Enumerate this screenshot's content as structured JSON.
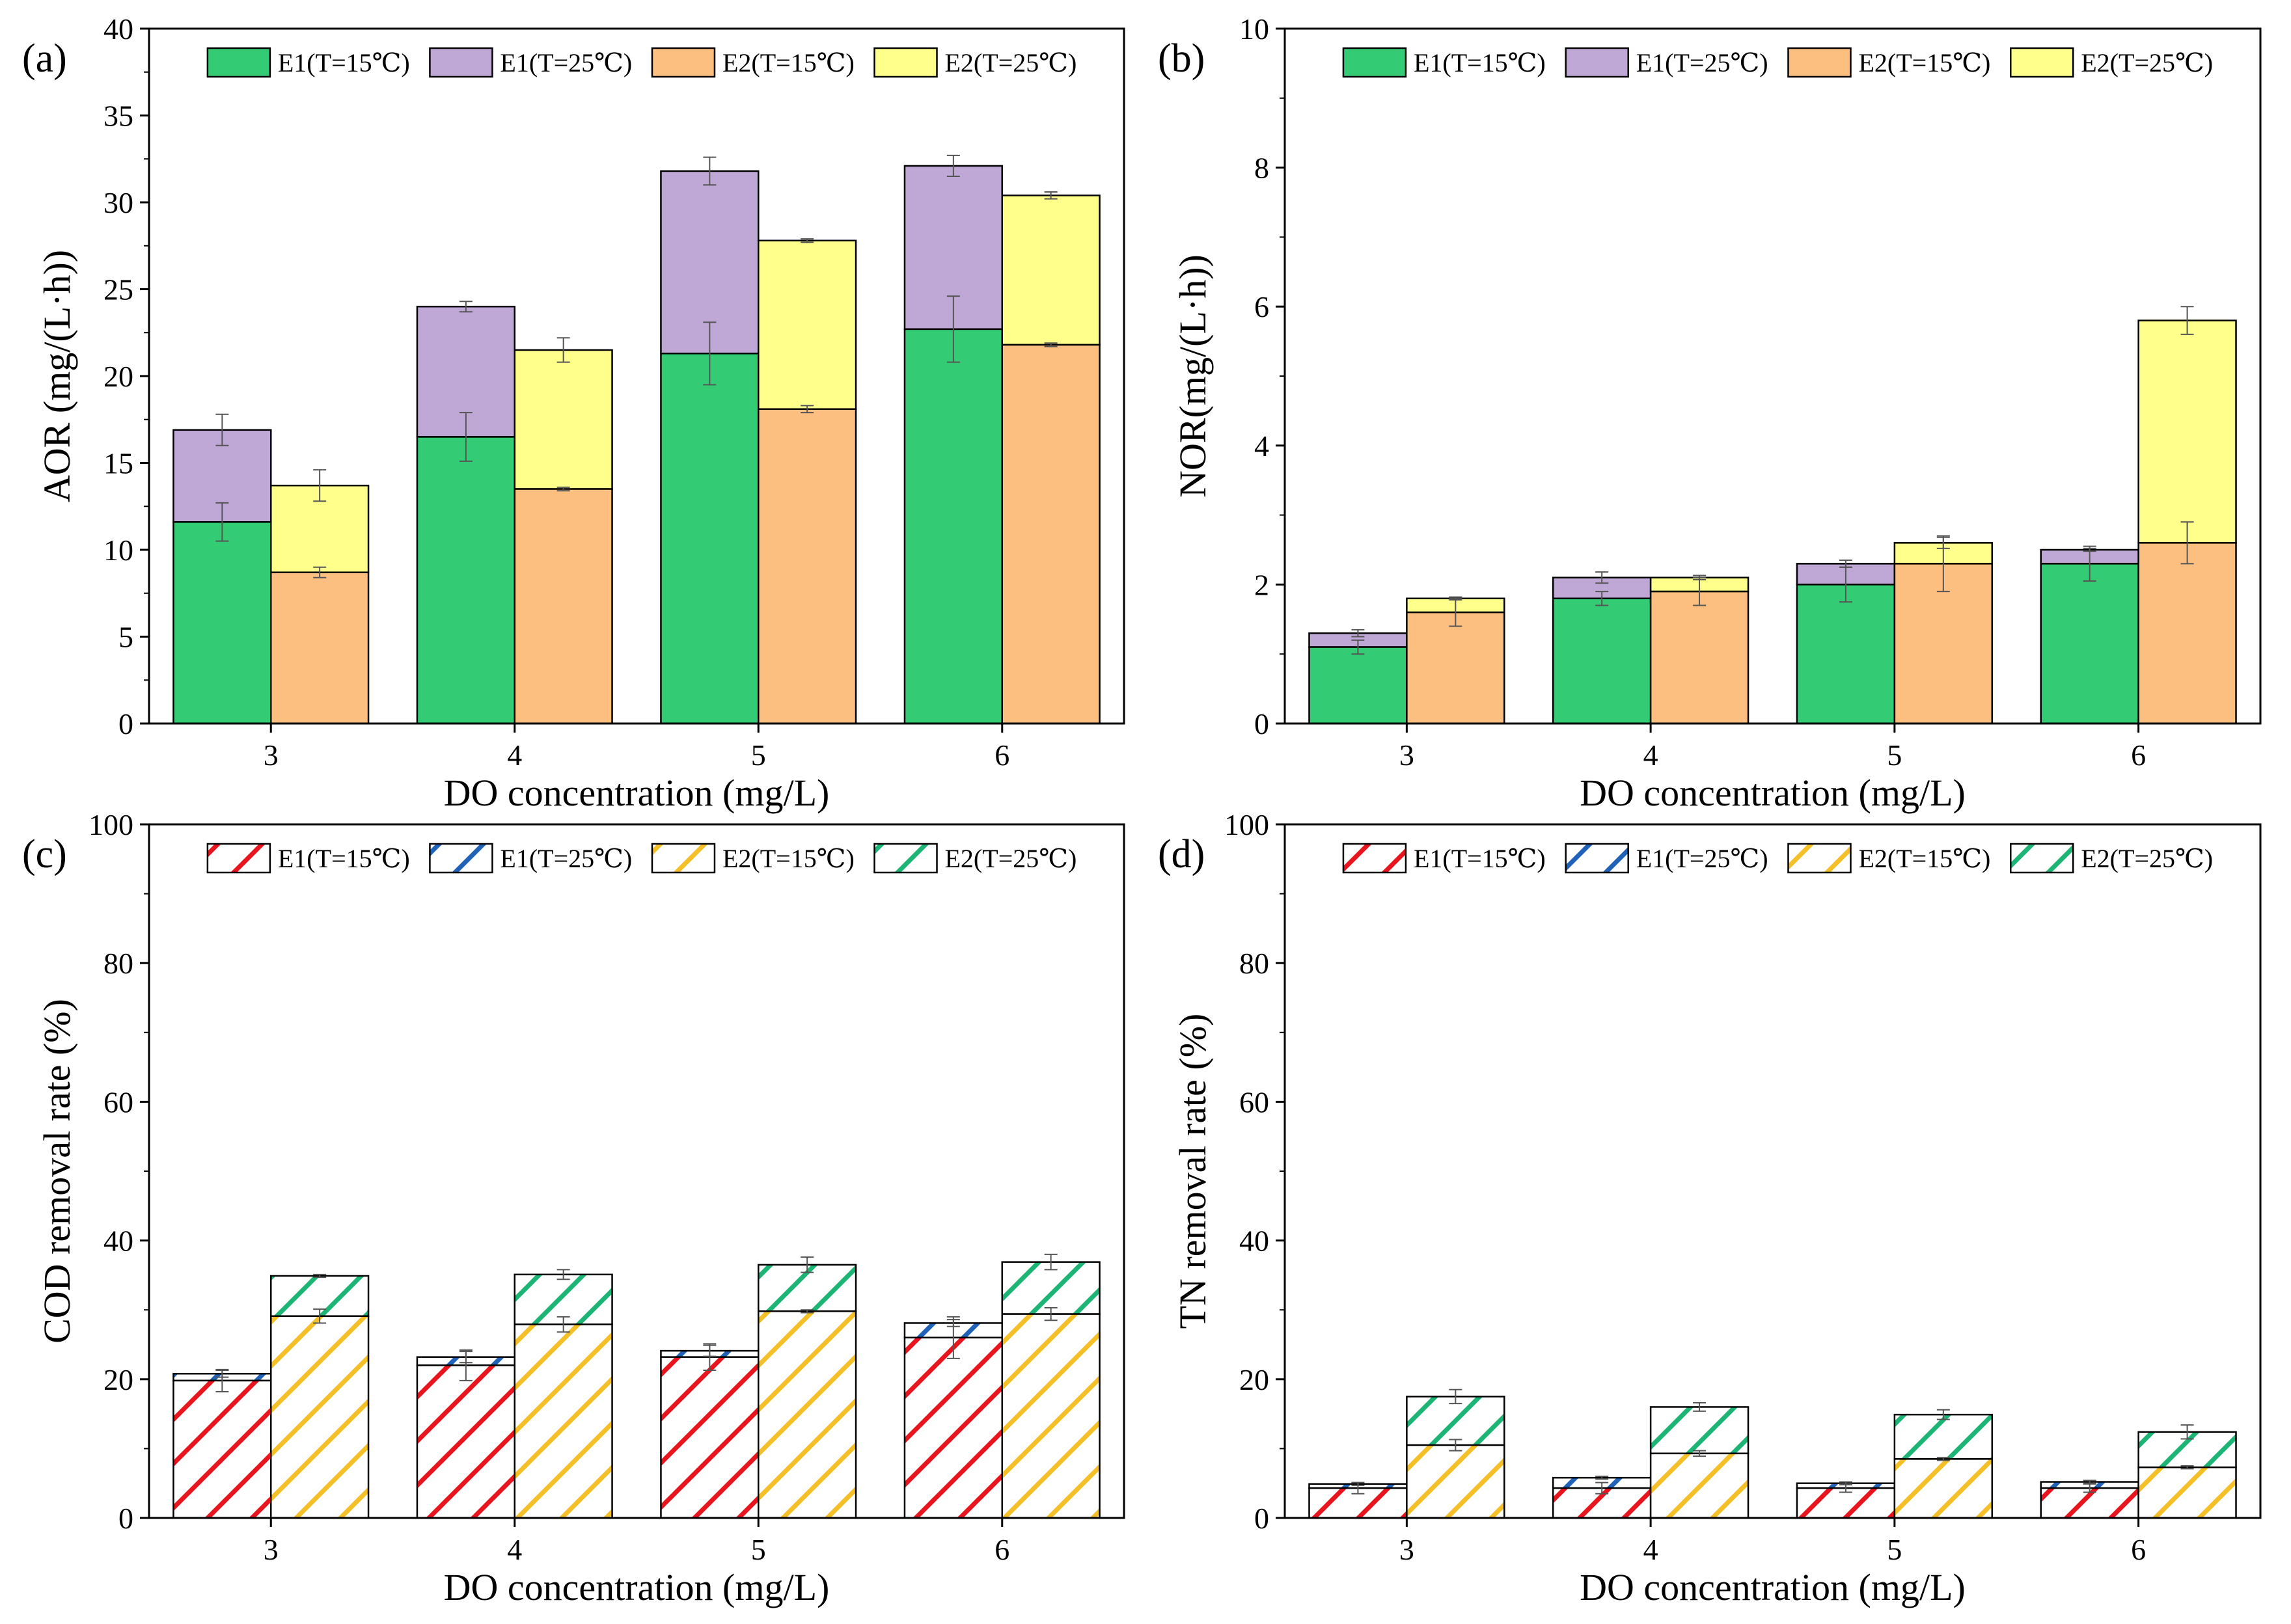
{
  "colors": {
    "e1_15": "#33cc74",
    "e1_25": "#bfa7d6",
    "e2_15": "#fdbf80",
    "e2_25": "#ffff8c",
    "hatch_e1_15": "#e8141e",
    "hatch_e1_25": "#1f62b8",
    "hatch_e2_15": "#f5c027",
    "hatch_e2_25": "#1db575"
  },
  "chart_data": [
    {
      "id": "a",
      "panel_label": "(a)",
      "type": "bar",
      "style": "solid",
      "stacked": true,
      "categories": [
        "3",
        "4",
        "5",
        "6"
      ],
      "xlabel": "DO concentration (mg/L)",
      "ylabel": "AOR (mg/(L·h))",
      "ylim": [
        0,
        40
      ],
      "yticks": [
        0,
        5,
        10,
        15,
        20,
        25,
        30,
        35,
        40
      ],
      "grid": false,
      "legend": "top",
      "legend_labels": [
        "E1(T=15℃)",
        "E1(T=25℃)",
        "E2(T=15℃)",
        "E2(T=25℃)"
      ],
      "groups": [
        {
          "name": "E1",
          "base": [
            11.6,
            16.5,
            21.3,
            22.7
          ],
          "base_err": [
            1.1,
            1.4,
            1.8,
            1.9
          ],
          "total": [
            16.9,
            24.0,
            31.8,
            32.1
          ],
          "total_err": [
            0.9,
            0.3,
            0.8,
            0.6
          ]
        },
        {
          "name": "E2",
          "base": [
            8.7,
            13.5,
            18.1,
            21.8
          ],
          "base_err": [
            0.3,
            0.1,
            0.2,
            0.1
          ],
          "total": [
            13.7,
            21.5,
            27.8,
            30.4
          ],
          "total_err": [
            0.9,
            0.7,
            0.1,
            0.2
          ]
        }
      ]
    },
    {
      "id": "b",
      "panel_label": "(b)",
      "type": "bar",
      "style": "solid",
      "stacked": true,
      "categories": [
        "3",
        "4",
        "5",
        "6"
      ],
      "xlabel": "DO concentration (mg/L)",
      "ylabel": "NOR(mg/(L·h))",
      "ylim": [
        0,
        10
      ],
      "yticks": [
        0,
        2,
        4,
        6,
        8,
        10
      ],
      "grid": false,
      "legend": "top",
      "legend_labels": [
        "E1(T=15℃)",
        "E1(T=25℃)",
        "E2(T=15℃)",
        "E2(T=25℃)"
      ],
      "groups": [
        {
          "name": "E1",
          "base": [
            1.1,
            1.8,
            2.0,
            2.3
          ],
          "base_err": [
            0.1,
            0.1,
            0.25,
            0.25
          ],
          "total": [
            1.3,
            2.1,
            2.3,
            2.5
          ],
          "total_err": [
            0.05,
            0.08,
            0.05,
            0.02
          ]
        },
        {
          "name": "E2",
          "base": [
            1.6,
            1.9,
            2.3,
            2.6
          ],
          "base_err": [
            0.2,
            0.2,
            0.4,
            0.3
          ],
          "total": [
            1.8,
            2.1,
            2.6,
            5.8
          ],
          "total_err": [
            0.02,
            0.03,
            0.08,
            0.2
          ]
        }
      ]
    },
    {
      "id": "c",
      "panel_label": "(c)",
      "type": "bar",
      "style": "hatched",
      "stacked": true,
      "categories": [
        "3",
        "4",
        "5",
        "6"
      ],
      "xlabel": "DO concentration (mg/L)",
      "ylabel": "COD removal rate (%)",
      "ylim": [
        0,
        100
      ],
      "yticks": [
        0,
        20,
        40,
        60,
        80,
        100
      ],
      "grid": false,
      "legend": "top",
      "legend_labels": [
        "E1(T=15℃)",
        "E1(T=25℃)",
        "E2(T=15℃)",
        "E2(T=25℃)"
      ],
      "groups": [
        {
          "name": "E1",
          "base": [
            19.8,
            22.0,
            23.2,
            26.0
          ],
          "base_err": [
            1.6,
            2.2,
            1.9,
            3.0
          ],
          "total": [
            20.8,
            23.2,
            24.1,
            28.1
          ],
          "total_err": [
            0.5,
            0.8,
            0.8,
            0.5
          ]
        },
        {
          "name": "E2",
          "base": [
            29.1,
            27.9,
            29.8,
            29.4
          ],
          "base_err": [
            1.0,
            1.1,
            0.2,
            0.9
          ],
          "total": [
            34.9,
            35.1,
            36.5,
            36.9
          ],
          "total_err": [
            0.2,
            0.7,
            1.1,
            1.1
          ]
        }
      ]
    },
    {
      "id": "d",
      "panel_label": "(d)",
      "type": "bar",
      "style": "hatched",
      "stacked": true,
      "categories": [
        "3",
        "4",
        "5",
        "6"
      ],
      "xlabel": "DO concentration (mg/L)",
      "ylabel": "TN removal rate (%)",
      "ylim": [
        0,
        100
      ],
      "yticks": [
        0,
        20,
        40,
        60,
        80,
        100
      ],
      "grid": false,
      "legend": "top",
      "legend_labels": [
        "E1(T=15℃)",
        "E1(T=25℃)",
        "E2(T=15℃)",
        "E2(T=25℃)"
      ],
      "groups": [
        {
          "name": "E1",
          "base": [
            4.3,
            4.3,
            4.3,
            4.3
          ],
          "base_err": [
            0.8,
            0.8,
            0.6,
            0.6
          ],
          "total": [
            4.9,
            5.8,
            5.0,
            5.2
          ],
          "total_err": [
            0.2,
            0.2,
            0.2,
            0.2
          ]
        },
        {
          "name": "E2",
          "base": [
            10.5,
            9.3,
            8.5,
            7.3
          ],
          "base_err": [
            0.8,
            0.4,
            0.2,
            0.2
          ],
          "total": [
            17.5,
            16.0,
            14.9,
            12.4
          ],
          "total_err": [
            1.0,
            0.6,
            0.7,
            1.0
          ]
        }
      ]
    }
  ]
}
